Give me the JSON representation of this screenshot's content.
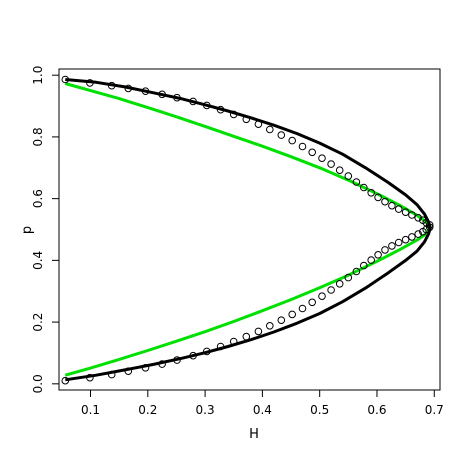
{
  "chart_data": {
    "type": "scatter",
    "title": "",
    "xlabel": "H",
    "ylabel": "p",
    "xlim": [
      0.045,
      0.71
    ],
    "ylim": [
      -0.02,
      1.02
    ],
    "x_ticks": [
      "0.1",
      "0.2",
      "0.3",
      "0.4",
      "0.5",
      "0.6",
      "0.7"
    ],
    "y_ticks": [
      "0.0",
      "0.2",
      "0.4",
      "0.6",
      "0.8",
      "1.0"
    ],
    "grid": false,
    "legend": "none",
    "colors": {
      "points": "#000000",
      "fit": "#000000",
      "reference": "#00e000"
    },
    "series": [
      {
        "kind": "points",
        "points": [
          [
            0.056,
            0.01
          ],
          [
            0.099,
            0.02
          ],
          [
            0.137,
            0.03
          ],
          [
            0.166,
            0.041
          ],
          [
            0.196,
            0.052
          ],
          [
            0.225,
            0.064
          ],
          [
            0.251,
            0.077
          ],
          [
            0.279,
            0.091
          ],
          [
            0.303,
            0.105
          ],
          [
            0.327,
            0.121
          ],
          [
            0.35,
            0.137
          ],
          [
            0.372,
            0.153
          ],
          [
            0.393,
            0.17
          ],
          [
            0.413,
            0.188
          ],
          [
            0.433,
            0.206
          ],
          [
            0.452,
            0.225
          ],
          [
            0.47,
            0.244
          ],
          [
            0.487,
            0.264
          ],
          [
            0.504,
            0.284
          ],
          [
            0.52,
            0.304
          ],
          [
            0.535,
            0.324
          ],
          [
            0.55,
            0.344
          ],
          [
            0.564,
            0.364
          ],
          [
            0.577,
            0.383
          ],
          [
            0.59,
            0.401
          ],
          [
            0.602,
            0.418
          ],
          [
            0.614,
            0.434
          ],
          [
            0.626,
            0.447
          ],
          [
            0.638,
            0.458
          ],
          [
            0.65,
            0.467
          ],
          [
            0.661,
            0.476
          ],
          [
            0.672,
            0.485
          ],
          [
            0.68,
            0.493
          ],
          [
            0.686,
            0.5
          ],
          [
            0.692,
            0.507
          ],
          [
            0.692,
            0.515
          ],
          [
            0.686,
            0.522
          ],
          [
            0.68,
            0.53
          ],
          [
            0.672,
            0.538
          ],
          [
            0.661,
            0.547
          ],
          [
            0.65,
            0.556
          ],
          [
            0.638,
            0.566
          ],
          [
            0.626,
            0.577
          ],
          [
            0.614,
            0.59
          ],
          [
            0.602,
            0.604
          ],
          [
            0.59,
            0.619
          ],
          [
            0.577,
            0.636
          ],
          [
            0.564,
            0.654
          ],
          [
            0.55,
            0.673
          ],
          [
            0.535,
            0.692
          ],
          [
            0.52,
            0.712
          ],
          [
            0.504,
            0.731
          ],
          [
            0.487,
            0.75
          ],
          [
            0.47,
            0.769
          ],
          [
            0.452,
            0.788
          ],
          [
            0.433,
            0.806
          ],
          [
            0.413,
            0.824
          ],
          [
            0.393,
            0.841
          ],
          [
            0.372,
            0.857
          ],
          [
            0.35,
            0.873
          ],
          [
            0.327,
            0.888
          ],
          [
            0.303,
            0.902
          ],
          [
            0.279,
            0.915
          ],
          [
            0.251,
            0.927
          ],
          [
            0.225,
            0.938
          ],
          [
            0.196,
            0.948
          ],
          [
            0.166,
            0.957
          ],
          [
            0.137,
            0.966
          ],
          [
            0.099,
            0.975
          ],
          [
            0.056,
            0.986
          ]
        ]
      },
      {
        "kind": "line",
        "points": [
          [
            0.056,
            0.013
          ],
          [
            0.11,
            0.028
          ],
          [
            0.16,
            0.045
          ],
          [
            0.21,
            0.063
          ],
          [
            0.26,
            0.083
          ],
          [
            0.3,
            0.101
          ],
          [
            0.34,
            0.121
          ],
          [
            0.38,
            0.143
          ],
          [
            0.42,
            0.168
          ],
          [
            0.46,
            0.196
          ],
          [
            0.5,
            0.228
          ],
          [
            0.54,
            0.266
          ],
          [
            0.58,
            0.31
          ],
          [
            0.62,
            0.36
          ],
          [
            0.65,
            0.4
          ],
          [
            0.67,
            0.43
          ],
          [
            0.683,
            0.46
          ],
          [
            0.69,
            0.485
          ],
          [
            0.693,
            0.505
          ],
          [
            0.69,
            0.525
          ],
          [
            0.683,
            0.55
          ],
          [
            0.67,
            0.58
          ],
          [
            0.65,
            0.612
          ],
          [
            0.62,
            0.652
          ],
          [
            0.58,
            0.7
          ],
          [
            0.54,
            0.744
          ],
          [
            0.5,
            0.78
          ],
          [
            0.46,
            0.811
          ],
          [
            0.42,
            0.838
          ],
          [
            0.38,
            0.862
          ],
          [
            0.34,
            0.884
          ],
          [
            0.3,
            0.904
          ],
          [
            0.26,
            0.923
          ],
          [
            0.21,
            0.943
          ],
          [
            0.16,
            0.962
          ],
          [
            0.11,
            0.977
          ],
          [
            0.056,
            0.986
          ]
        ]
      },
      {
        "kind": "line",
        "points": [
          [
            0.056,
            0.028
          ],
          [
            0.1,
            0.051
          ],
          [
            0.15,
            0.079
          ],
          [
            0.2,
            0.108
          ],
          [
            0.25,
            0.138
          ],
          [
            0.3,
            0.169
          ],
          [
            0.35,
            0.202
          ],
          [
            0.4,
            0.237
          ],
          [
            0.45,
            0.273
          ],
          [
            0.5,
            0.311
          ],
          [
            0.55,
            0.352
          ],
          [
            0.6,
            0.397
          ],
          [
            0.64,
            0.435
          ],
          [
            0.67,
            0.466
          ],
          [
            0.685,
            0.485
          ],
          [
            0.69,
            0.497
          ],
          [
            0.691,
            0.505
          ],
          [
            0.69,
            0.513
          ],
          [
            0.685,
            0.525
          ],
          [
            0.67,
            0.546
          ],
          [
            0.64,
            0.578
          ],
          [
            0.6,
            0.616
          ],
          [
            0.55,
            0.66
          ],
          [
            0.5,
            0.7
          ],
          [
            0.45,
            0.736
          ],
          [
            0.4,
            0.77
          ],
          [
            0.35,
            0.802
          ],
          [
            0.3,
            0.834
          ],
          [
            0.25,
            0.865
          ],
          [
            0.2,
            0.895
          ],
          [
            0.15,
            0.924
          ],
          [
            0.1,
            0.95
          ],
          [
            0.056,
            0.973
          ]
        ]
      }
    ]
  }
}
